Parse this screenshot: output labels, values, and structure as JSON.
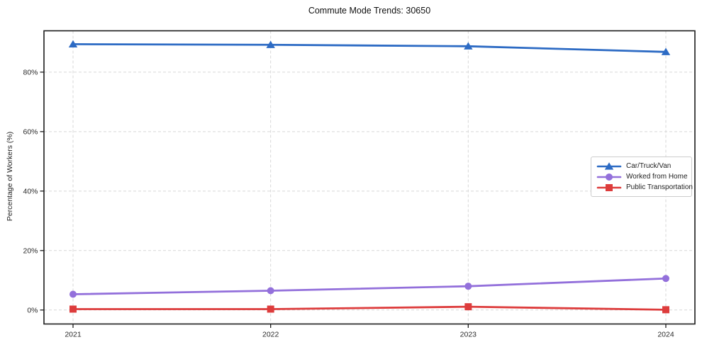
{
  "chart_data": {
    "type": "line",
    "title": "Commute Mode Trends: 30650",
    "xlabel": "",
    "ylabel": "Percentage of Workers (%)",
    "categories": [
      "2021",
      "2022",
      "2023",
      "2024"
    ],
    "series": [
      {
        "name": "Car/Truck/Van",
        "marker": "triangle",
        "color": "#2d6bc4",
        "values": [
          89.4,
          89.2,
          88.7,
          86.8
        ]
      },
      {
        "name": "Worked from Home",
        "marker": "circle",
        "color": "#9370db",
        "values": [
          5.3,
          6.5,
          8.0,
          10.6
        ]
      },
      {
        "name": "Public Transportation",
        "marker": "square",
        "color": "#dd3c3c",
        "values": [
          0.3,
          0.3,
          1.1,
          0.1
        ]
      }
    ],
    "yticks": [
      {
        "value": 0,
        "label": "0%"
      },
      {
        "value": 20,
        "label": "20%"
      },
      {
        "value": 40,
        "label": "40%"
      },
      {
        "value": 60,
        "label": "60%"
      },
      {
        "value": 80,
        "label": "80%"
      }
    ],
    "ylim": [
      -4.7,
      93.9
    ],
    "grid": "dashed-both-axes",
    "legend_position": "center-right",
    "colors": {
      "grid": "#d7d7d7",
      "spine": "#1c1c1c",
      "tick_label": "#2b2b2b",
      "title": "#101010"
    }
  }
}
